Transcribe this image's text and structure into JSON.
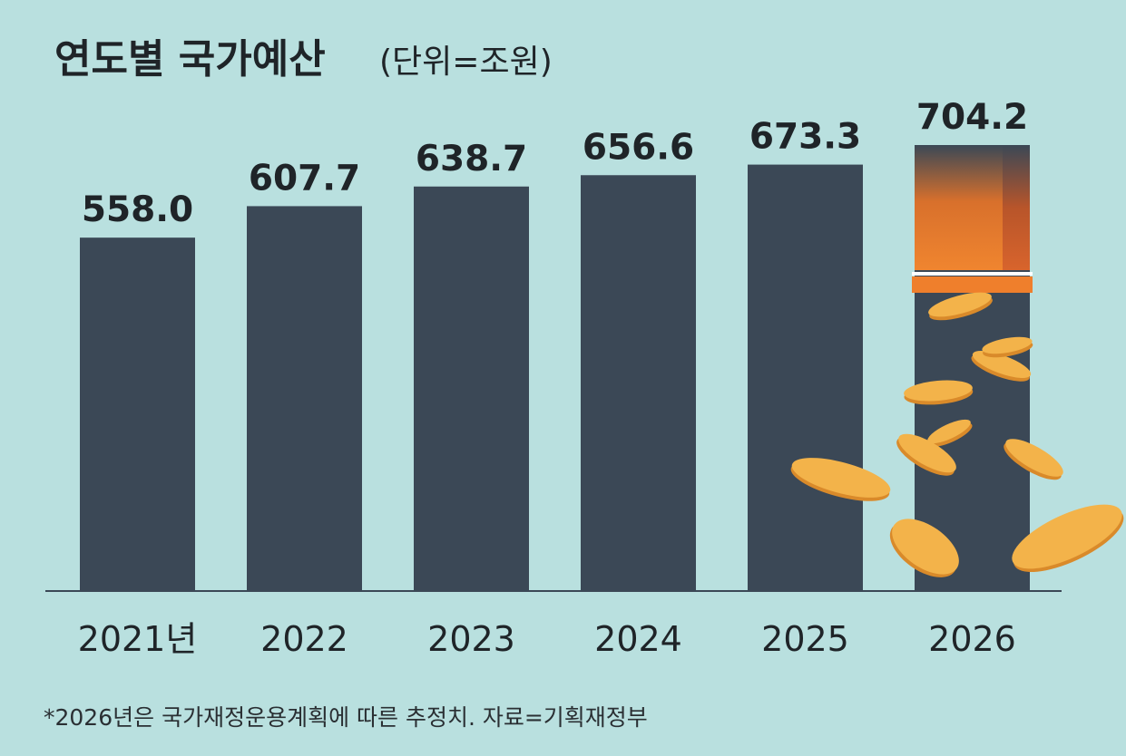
{
  "chart_data": {
    "type": "bar",
    "title": "연도별 국가예산",
    "unit_label": "(단위=조원)",
    "categories": [
      "2021년",
      "2022",
      "2023",
      "2024",
      "2025",
      "2026"
    ],
    "values": [
      558.0,
      607.7,
      638.7,
      656.6,
      673.3,
      704.2
    ],
    "value_labels": [
      "558.0",
      "607.7",
      "638.7",
      "656.6",
      "673.3",
      "704.2"
    ],
    "ylim": [
      0,
      704.2
    ],
    "grid": false,
    "legend": "none",
    "footnote": "*2026년은 국가재정운용계획에 따른 추정치. 자료=기획재정부"
  },
  "colors": {
    "background": "#b9e0df",
    "bar": "#3b4856",
    "highlight_top": "#ef7f2c",
    "coin": "#f3b34a",
    "coin_edge": "#d98a2a",
    "text": "#1f2428"
  },
  "icons": [
    "falling-coin-icon"
  ]
}
